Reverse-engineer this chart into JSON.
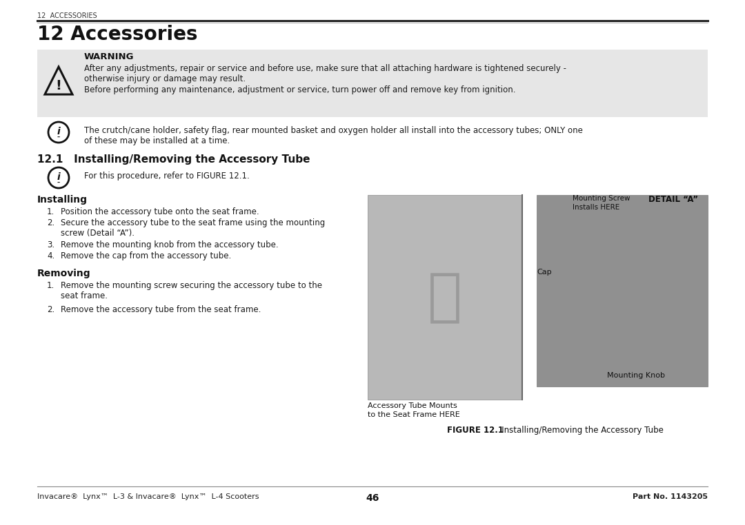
{
  "page_bg": "#ffffff",
  "header_small": "12  ACCESSORIES",
  "title": "12 Accessories",
  "warning_bg": "#e6e6e6",
  "warning_title": "WARNING",
  "warning_line1": "After any adjustments, repair or service and before use, make sure that all attaching hardware is tightened securely -",
  "warning_line2": "otherwise injury or damage may result.",
  "warning_line3": "Before performing any maintenance, adjustment or service, turn power off and remove key from ignition.",
  "info1_line1": "The crutch/cane holder, safety flag, rear mounted basket and oxygen holder all install into the accessory tubes; ONLY one",
  "info1_line2": "of these may be installed at a time.",
  "section_title": "12.1   Installing/Removing the Accessory Tube",
  "info2_line1": "For this procedure, refer to FIGURE 12.1.",
  "installing_title": "Installing",
  "install_step1": "Position the accessory tube onto the seat frame.",
  "install_step2a": "Secure the accessory tube to the seat frame using the mounting",
  "install_step2b": "screw (Detail “A”).",
  "install_step3": "Remove the mounting knob from the accessory tube.",
  "install_step4": "Remove the cap from the accessory tube.",
  "removing_title": "Removing",
  "remove_step1a": "Remove the mounting screw securing the accessory tube to the",
  "remove_step1b": "seat frame.",
  "remove_step2": "Remove the accessory tube from the seat frame.",
  "figure_caption_bold": "FIGURE 12.1",
  "figure_caption_rest": "   Installing/Removing the Accessory Tube",
  "figure_label_left1": "Accessory Tube Mounts",
  "figure_label_left2": "to the Seat Frame HERE",
  "figure_label_cap": "Cap",
  "figure_label_detail": "DETAIL “A”",
  "figure_label_mounting_screw": "Mounting Screw",
  "figure_label_installs": "Installs HERE",
  "figure_label_knob": "Mounting Knob",
  "footer_left": "Invacare®  Lynx™  L-3 & Invacare®  Lynx™  L-4 Scooters",
  "footer_center": "46",
  "footer_right": "Part No. 1143205",
  "text_color": "#1a1a1a",
  "line_color": "#222222"
}
